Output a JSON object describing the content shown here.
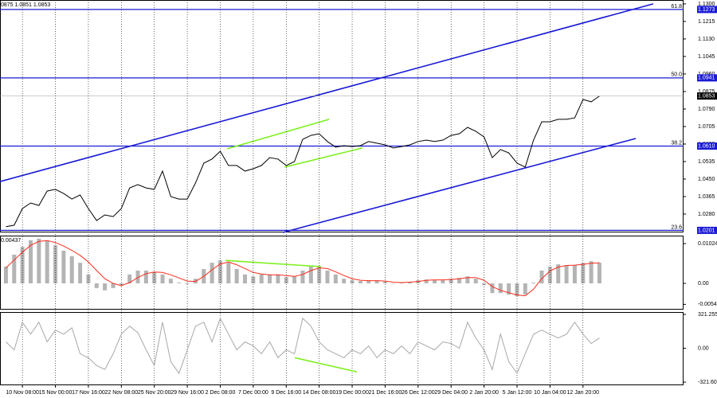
{
  "chart_data": [
    {
      "type": "line",
      "header": "0875 1.0851 1.0853",
      "color": "#000000",
      "x": [
        -0.5,
        -0.25,
        0,
        0.25,
        0.5,
        0.75,
        1,
        1.25,
        1.5,
        1.75,
        2,
        2.25,
        2.5,
        2.75,
        3,
        3.25,
        3.5,
        3.75,
        4,
        4.25,
        4.5,
        4.75,
        5,
        5.25,
        5.5,
        5.75,
        6,
        6.25,
        6.5,
        6.75,
        7,
        7.25,
        7.5,
        7.75,
        8,
        8.25,
        8.5,
        8.75,
        9,
        9.25,
        9.5,
        9.75,
        10,
        10.25,
        10.5,
        10.75,
        11,
        11.25,
        11.5,
        11.75,
        12,
        12.25,
        12.5,
        12.75,
        13,
        13.25,
        13.5,
        13.75,
        14,
        14.25,
        14.5,
        14.75,
        15,
        15.25,
        15.5,
        15.75,
        16,
        16.25,
        16.5,
        16.75,
        17,
        17.25,
        17.5
      ],
      "values": [
        1.0219,
        1.0226,
        1.0307,
        1.0334,
        1.0322,
        1.0392,
        1.04,
        1.038,
        1.0353,
        1.0373,
        1.0307,
        1.0249,
        1.0276,
        1.0268,
        1.0307,
        1.0407,
        1.0423,
        1.0407,
        1.04,
        1.0489,
        1.0365,
        1.0353,
        1.0353,
        1.0431,
        1.0527,
        1.0547,
        1.0585,
        1.0516,
        1.0516,
        1.0489,
        1.05,
        1.0516,
        1.0554,
        1.0547,
        1.0516,
        1.0535,
        1.0643,
        1.0662,
        1.067,
        1.0632,
        1.0605,
        1.0612,
        1.0608,
        1.0612,
        1.0632,
        1.0624,
        1.0616,
        1.0601,
        1.0608,
        1.0616,
        1.0632,
        1.0639,
        1.0632,
        1.0639,
        1.0662,
        1.067,
        1.0701,
        1.0682,
        1.0655,
        1.0554,
        1.0593,
        1.0577,
        1.0527,
        1.0508,
        1.0639,
        1.0728,
        1.0728,
        1.074,
        1.074,
        1.0747,
        1.0836,
        1.0825,
        1.0853
      ],
      "xlim": [
        -0.68,
        20.05
      ],
      "ylim": [
        1.0191,
        1.1319
      ],
      "yticks": [
        {
          "value": 1.13,
          "label": "1.1300"
        },
        {
          "value": 1.1215,
          "label": "1.1215"
        },
        {
          "value": 1.113,
          "label": "1.1130"
        },
        {
          "value": 1.1045,
          "label": "1.1045"
        },
        {
          "value": 1.096,
          "label": "1.0960"
        },
        {
          "value": 1.0875,
          "label": "1.0875"
        },
        {
          "value": 1.079,
          "label": "1.0790"
        },
        {
          "value": 1.0705,
          "label": "1.0705"
        },
        {
          "value": 1.062,
          "label": "1.0620"
        },
        {
          "value": 1.0535,
          "label": "1.0535"
        },
        {
          "value": 1.045,
          "label": "1.0450"
        },
        {
          "value": 1.0365,
          "label": "1.0365"
        },
        {
          "value": 1.028,
          "label": "1.0280"
        }
      ],
      "levels": [
        {
          "label": "61.8",
          "value": 1.1273,
          "value_label": "1.1273"
        },
        {
          "label": "50.0",
          "value": 1.0941,
          "value_label": "1.0941"
        },
        {
          "label": "38.2",
          "value": 1.061,
          "value_label": "1.0610"
        },
        {
          "label": "23.6",
          "value": 1.0201,
          "value_label": "1.0201"
        }
      ],
      "level_color": "#1a1ad6",
      "last_price": {
        "value": 1.0853,
        "label": "1.0853"
      },
      "trendlines": [
        {
          "color": "#1a1ad6",
          "x": [
            -0.68,
            19.13
          ],
          "y": [
            1.0438,
            1.13
          ]
        },
        {
          "color": "#1a1ad6",
          "x": [
            7.9,
            18.6
          ],
          "y": [
            1.0191,
            1.0647
          ]
        },
        {
          "color": "#7cf01c",
          "x": [
            6.21,
            9.3
          ],
          "y": [
            1.0597,
            1.074
          ]
        },
        {
          "color": "#7cf01c",
          "x": [
            7.95,
            10.31
          ],
          "y": [
            1.0508,
            1.0601
          ]
        }
      ]
    },
    {
      "type": "bar",
      "header": "0.00437",
      "color": "#b4b4b4",
      "line_color": "#ff2a1a",
      "x": [
        -0.5,
        -0.25,
        0,
        0.25,
        0.5,
        0.75,
        1,
        1.25,
        1.5,
        1.75,
        2,
        2.25,
        2.5,
        2.75,
        3,
        3.25,
        3.5,
        3.75,
        4,
        4.25,
        4.5,
        4.75,
        5,
        5.25,
        5.5,
        5.75,
        6,
        6.25,
        6.5,
        6.75,
        7,
        7.25,
        7.5,
        7.75,
        8,
        8.25,
        8.5,
        8.75,
        9,
        9.25,
        9.5,
        9.75,
        10,
        10.25,
        10.5,
        10.75,
        11,
        11.25,
        11.5,
        11.75,
        12,
        12.25,
        12.5,
        12.75,
        13,
        13.25,
        13.5,
        13.75,
        14,
        14.25,
        14.5,
        14.75,
        15,
        15.25,
        15.5,
        15.75,
        16,
        16.25,
        16.5,
        16.75,
        17,
        17.25,
        17.5
      ],
      "values": [
        0.0043,
        0.0074,
        0.0094,
        0.0111,
        0.0115,
        0.0109,
        0.0098,
        0.0084,
        0.007,
        0.0053,
        0.0023,
        -0.0012,
        -0.0018,
        -0.0012,
        -0.0004,
        0.0023,
        0.0033,
        0.0033,
        0.0029,
        0.0023,
        0.0012,
        0.0002,
        -0.0002,
        0.0012,
        0.0037,
        0.0053,
        0.0059,
        0.0053,
        0.0037,
        0.0023,
        0.0018,
        0.0023,
        0.0023,
        0.0023,
        0.0016,
        0.0018,
        0.0033,
        0.0043,
        0.0043,
        0.0033,
        0.0023,
        0.0012,
        0.0008,
        0.0006,
        0.0008,
        0.0008,
        0.0004,
        0,
        0.0002,
        0.0004,
        0.0008,
        0.001,
        0.0008,
        0.0008,
        0.0012,
        0.0014,
        0.0018,
        0.0012,
        -0.0004,
        -0.0025,
        -0.0025,
        -0.0029,
        -0.0033,
        -0.0029,
        0.0002,
        0.0033,
        0.0043,
        0.0049,
        0.0047,
        0.0047,
        0.0053,
        0.0057,
        0.0053
      ],
      "line_values": [
        0.004,
        0.006,
        0.008,
        0.0098,
        0.0108,
        0.011,
        0.0105,
        0.0096,
        0.0085,
        0.0072,
        0.0055,
        0.0033,
        0.0012,
        0.0,
        -0.0006,
        0.0002,
        0.0015,
        0.0025,
        0.0029,
        0.0028,
        0.0022,
        0.0014,
        0.0006,
        0.0005,
        0.0018,
        0.0035,
        0.005,
        0.0055,
        0.0048,
        0.0038,
        0.0028,
        0.0024,
        0.0022,
        0.0022,
        0.002,
        0.0018,
        0.0023,
        0.0033,
        0.004,
        0.0038,
        0.003,
        0.002,
        0.0012,
        0.0008,
        0.0007,
        0.0007,
        0.0006,
        0.0003,
        0.0002,
        0.0003,
        0.0005,
        0.0008,
        0.0009,
        0.0009,
        0.001,
        0.0012,
        0.0015,
        0.0015,
        0.0008,
        -0.0008,
        -0.0018,
        -0.0024,
        -0.003,
        -0.0032,
        -0.0015,
        0.0012,
        0.0032,
        0.0042,
        0.0046,
        0.0047,
        0.0049,
        0.0052,
        0.0053
      ],
      "xlim": [
        -0.68,
        20.05
      ],
      "ylim": [
        -0.00676,
        0.01229
      ],
      "yticks": [
        {
          "value": 0.01024,
          "label": "0.01024"
        },
        {
          "value": 0,
          "label": "0.00"
        },
        {
          "value": -0.0054,
          "label": "-0.0054"
        }
      ],
      "trendlines": [
        {
          "color": "#7cf01c",
          "x": [
            6.16,
            9.06
          ],
          "y": [
            0.0059,
            0.0043
          ]
        }
      ]
    },
    {
      "type": "line",
      "color": "#a8a8a8",
      "x": [
        -0.5,
        -0.25,
        0,
        0.25,
        0.5,
        0.75,
        1,
        1.25,
        1.5,
        1.75,
        2,
        2.25,
        2.5,
        2.75,
        3,
        3.25,
        3.5,
        3.75,
        4,
        4.25,
        4.5,
        4.75,
        5,
        5.25,
        5.5,
        5.75,
        6,
        6.25,
        6.5,
        6.75,
        7,
        7.25,
        7.5,
        7.75,
        8,
        8.25,
        8.5,
        8.75,
        9,
        9.25,
        9.5,
        9.75,
        10,
        10.25,
        10.5,
        10.75,
        11,
        11.25,
        11.5,
        11.75,
        12,
        12.25,
        12.5,
        12.75,
        13,
        13.25,
        13.5,
        13.75,
        14,
        14.25,
        14.5,
        14.75,
        15,
        15.25,
        15.5,
        15.75,
        16,
        16.25,
        16.5,
        16.75,
        17,
        17.25,
        17.5
      ],
      "values": [
        60,
        -15,
        247,
        134,
        247,
        60,
        172,
        134,
        194,
        -52,
        -90,
        -164,
        -202,
        -52,
        134,
        209,
        149,
        -15,
        -164,
        247,
        -127,
        -239,
        -15,
        209,
        247,
        60,
        284,
        134,
        -15,
        60,
        22,
        -52,
        60,
        -90,
        -15,
        -52,
        284,
        209,
        60,
        -15,
        -52,
        -90,
        -15,
        -52,
        22,
        -90,
        -15,
        -52,
        22,
        -52,
        60,
        22,
        -15,
        60,
        45,
        0,
        247,
        97,
        -15,
        -202,
        134,
        -127,
        -239,
        -52,
        134,
        172,
        134,
        97,
        134,
        247,
        134,
        45,
        97
      ],
      "xlim": [
        -0.68,
        20.05
      ],
      "ylim": [
        -351.5,
        343.7
      ],
      "yticks": [
        321.2557,
        {
          "value": 0,
          "label": "0.00"
        },
        -321.603
      ],
      "trendlines": [
        {
          "color": "#7cf01c",
          "x": [
            8.26,
            10.14
          ],
          "y": [
            -90,
            -224
          ]
        }
      ],
      "grid": true,
      "xticks": [
        {
          "value": 0,
          "label": "10 Nov 08:00"
        },
        {
          "value": 1,
          "label": "15 Nov 00:00"
        },
        {
          "value": 2,
          "label": "17 Nov 16:00"
        },
        {
          "value": 3,
          "label": "22 Nov 08:00"
        },
        {
          "value": 4,
          "label": "25 Nov 20:00"
        },
        {
          "value": 5,
          "label": "29 Nov 16:00"
        },
        {
          "value": 6,
          "label": "2 Dec 08:00"
        },
        {
          "value": 7,
          "label": "7 Dec 00:00"
        },
        {
          "value": 8,
          "label": "9 Dec 16:00"
        },
        {
          "value": 9,
          "label": "14 Dec 08:00"
        },
        {
          "value": 10,
          "label": "19 Dec 00:00"
        },
        {
          "value": 11,
          "label": "21 Dec 16:00"
        },
        {
          "value": 12,
          "label": "26 Dec 12:00"
        },
        {
          "value": 13,
          "label": "29 Dec 04:00"
        },
        {
          "value": 14,
          "label": "2 Jan 20:00"
        },
        {
          "value": 15,
          "label": "5 Jan 12:00"
        },
        {
          "value": 16,
          "label": "10 Jan 04:00"
        },
        {
          "value": 17,
          "label": "12 Jan 20:00"
        }
      ]
    }
  ]
}
